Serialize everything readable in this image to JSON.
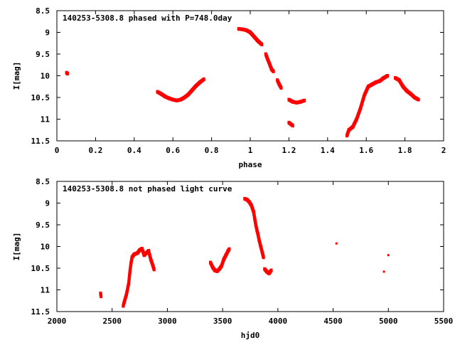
{
  "chart_data": [
    {
      "type": "scatter",
      "title": "140253-5308.8 phased with P=748.0day",
      "xlabel": "phase",
      "ylabel": "I[mag]",
      "xlim": [
        0,
        2
      ],
      "ylim": [
        8.5,
        11.5
      ],
      "y_inverted": true,
      "xticks": [
        "0",
        "0.2",
        "0.4",
        "0.6",
        "0.8",
        "1",
        "1.2",
        "1.4",
        "1.6",
        "1.8",
        "2"
      ],
      "yticks": [
        "8.5",
        "9",
        "9.5",
        "10",
        "10.5",
        "11",
        "11.5"
      ],
      "marker_color": "#ff0000",
      "segments": [
        [
          [
            0.05,
            9.93
          ],
          [
            0.055,
            9.95
          ]
        ],
        [
          [
            0.52,
            10.37
          ],
          [
            0.54,
            10.42
          ],
          [
            0.56,
            10.48
          ],
          [
            0.58,
            10.52
          ],
          [
            0.6,
            10.55
          ],
          [
            0.62,
            10.57
          ],
          [
            0.64,
            10.55
          ],
          [
            0.66,
            10.5
          ],
          [
            0.68,
            10.43
          ],
          [
            0.7,
            10.33
          ],
          [
            0.72,
            10.23
          ],
          [
            0.74,
            10.15
          ],
          [
            0.76,
            10.08
          ]
        ],
        [
          [
            0.94,
            8.92
          ],
          [
            0.96,
            8.93
          ],
          [
            0.98,
            8.95
          ],
          [
            1.0,
            9.0
          ],
          [
            1.02,
            9.1
          ],
          [
            1.04,
            9.2
          ],
          [
            1.06,
            9.28
          ]
        ],
        [
          [
            1.08,
            9.5
          ],
          [
            1.09,
            9.62
          ],
          [
            1.1,
            9.73
          ],
          [
            1.11,
            9.85
          ],
          [
            1.12,
            9.9
          ]
        ],
        [
          [
            1.14,
            10.1
          ],
          [
            1.15,
            10.2
          ],
          [
            1.16,
            10.28
          ]
        ],
        [
          [
            1.2,
            10.55
          ],
          [
            1.22,
            10.6
          ],
          [
            1.24,
            10.62
          ],
          [
            1.26,
            10.6
          ],
          [
            1.28,
            10.57
          ]
        ],
        [
          [
            1.2,
            11.08
          ],
          [
            1.22,
            11.15
          ]
        ],
        [
          [
            1.5,
            11.38
          ],
          [
            1.51,
            11.25
          ],
          [
            1.53,
            11.18
          ],
          [
            1.55,
            11.0
          ],
          [
            1.57,
            10.75
          ],
          [
            1.59,
            10.45
          ],
          [
            1.61,
            10.25
          ],
          [
            1.63,
            10.2
          ],
          [
            1.65,
            10.15
          ],
          [
            1.67,
            10.12
          ],
          [
            1.69,
            10.05
          ],
          [
            1.71,
            10.0
          ]
        ],
        [
          [
            1.75,
            10.05
          ],
          [
            1.77,
            10.1
          ],
          [
            1.79,
            10.25
          ],
          [
            1.81,
            10.35
          ],
          [
            1.83,
            10.42
          ],
          [
            1.85,
            10.5
          ],
          [
            1.87,
            10.55
          ]
        ]
      ]
    },
    {
      "type": "scatter",
      "title": "140253-5308.8 not phased light curve",
      "xlabel": "hjd0",
      "ylabel": "I[mag]",
      "xlim": [
        2000,
        5500
      ],
      "ylim": [
        8.5,
        11.5
      ],
      "y_inverted": true,
      "xticks": [
        "2000",
        "2500",
        "3000",
        "3500",
        "4000",
        "4500",
        "5000",
        "5500"
      ],
      "yticks": [
        "8.5",
        "9",
        "9.5",
        "10",
        "10.5",
        "11",
        "11.5"
      ],
      "marker_color": "#ff0000",
      "segments": [
        [
          [
            2395,
            11.08
          ],
          [
            2400,
            11.15
          ]
        ],
        [
          [
            2600,
            11.37
          ],
          [
            2610,
            11.28
          ],
          [
            2630,
            11.1
          ],
          [
            2650,
            10.85
          ],
          [
            2660,
            10.6
          ],
          [
            2670,
            10.4
          ],
          [
            2680,
            10.25
          ],
          [
            2700,
            10.18
          ],
          [
            2730,
            10.15
          ],
          [
            2750,
            10.08
          ],
          [
            2770,
            10.05
          ],
          [
            2790,
            10.2
          ],
          [
            2810,
            10.15
          ],
          [
            2830,
            10.1
          ],
          [
            2850,
            10.3
          ],
          [
            2870,
            10.45
          ],
          [
            2880,
            10.53
          ]
        ],
        [
          [
            3390,
            10.37
          ],
          [
            3410,
            10.48
          ],
          [
            3430,
            10.55
          ],
          [
            3450,
            10.57
          ],
          [
            3470,
            10.52
          ],
          [
            3490,
            10.45
          ],
          [
            3510,
            10.3
          ],
          [
            3530,
            10.2
          ],
          [
            3550,
            10.1
          ],
          [
            3560,
            10.06
          ]
        ],
        [
          [
            3700,
            8.9
          ],
          [
            3720,
            8.92
          ],
          [
            3740,
            8.97
          ],
          [
            3760,
            9.05
          ],
          [
            3780,
            9.2
          ],
          [
            3790,
            9.35
          ],
          [
            3800,
            9.5
          ],
          [
            3810,
            9.62
          ],
          [
            3820,
            9.72
          ],
          [
            3830,
            9.85
          ],
          [
            3845,
            10.0
          ],
          [
            3860,
            10.15
          ],
          [
            3870,
            10.25
          ]
        ],
        [
          [
            3880,
            10.52
          ],
          [
            3900,
            10.58
          ],
          [
            3920,
            10.62
          ],
          [
            3940,
            10.55
          ]
        ],
        [
          [
            4530,
            9.93
          ]
        ],
        [
          [
            4960,
            10.58
          ]
        ],
        [
          [
            5000,
            10.2
          ]
        ]
      ]
    }
  ]
}
